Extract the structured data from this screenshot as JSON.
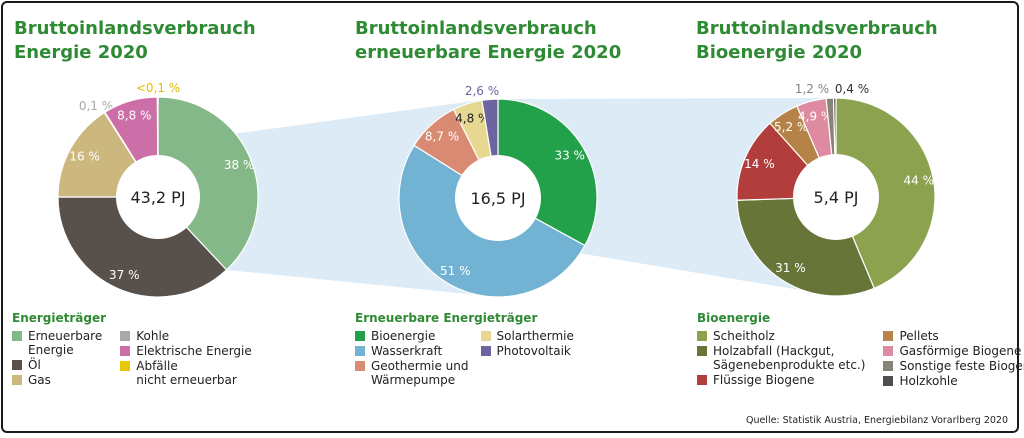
{
  "source": "Quelle: Statistik Austria, Energiebilanz Vorarlberg 2020",
  "chart_data": [
    {
      "type": "pie",
      "title": [
        "Bruttoinlandsverbrauch",
        "Energie 2020"
      ],
      "center_label": "43,2 PJ",
      "legend_title": "Energieträger",
      "slices": [
        {
          "name": [
            "Erneuerbare",
            "Energie"
          ],
          "value": 38,
          "label": "38 %",
          "color": "#85b888"
        },
        {
          "name": [
            "Öl"
          ],
          "value": 37,
          "label": "37 %",
          "color": "#57504b"
        },
        {
          "name": [
            "Gas"
          ],
          "value": 16,
          "label": "16 %",
          "color": "#ccb87e"
        },
        {
          "name": [
            "Kohle"
          ],
          "value": 0.1,
          "label": "0,1 %",
          "color": "#a8a8a8"
        },
        {
          "name": [
            "Elektrische Energie"
          ],
          "value": 8.8,
          "label": "8,8 %",
          "color": "#cc6fa8"
        },
        {
          "name": [
            "Abfälle",
            "nicht erneuerbar"
          ],
          "value": 0.1,
          "label": "<0,1 %",
          "color": "#e8c800"
        }
      ],
      "draw_order": [
        0,
        1,
        2,
        3,
        4,
        5
      ],
      "legend_columns": [
        [
          0,
          1,
          2
        ],
        [
          3,
          4,
          5
        ]
      ]
    },
    {
      "type": "pie",
      "title": [
        "Bruttoinlandsverbrauch",
        "erneuerbare Energie 2020"
      ],
      "center_label": "16,5 PJ",
      "legend_title": "Erneuerbare Energieträger",
      "slices": [
        {
          "name": [
            "Bioenergie"
          ],
          "value": 33,
          "label": "33 %",
          "color": "#22a04a"
        },
        {
          "name": [
            "Wasserkraft"
          ],
          "value": 51,
          "label": "51 %",
          "color": "#72b3d3"
        },
        {
          "name": [
            "Geothermie und",
            "Wärmepumpe"
          ],
          "value": 8.7,
          "label": "8,7 %",
          "color": "#d88a72"
        },
        {
          "name": [
            "Solarthermie"
          ],
          "value": 4.8,
          "label": "4,8 %",
          "color": "#e6d890"
        },
        {
          "name": [
            "Photovoltaik"
          ],
          "value": 2.6,
          "label": "2,6 %",
          "color": "#6e64a0"
        }
      ],
      "draw_order": [
        0,
        1,
        2,
        3,
        4
      ],
      "legend_columns": [
        [
          0,
          1,
          2
        ],
        [
          3,
          4
        ]
      ]
    },
    {
      "type": "pie",
      "title": [
        "Bruttoinlandsverbrauch",
        "Bioenergie 2020"
      ],
      "center_label": "5,4 PJ",
      "legend_title": "Bioenergie",
      "slices": [
        {
          "name": [
            "Scheitholz"
          ],
          "value": 44,
          "label": "44 %",
          "color": "#8ca24e"
        },
        {
          "name": [
            "Holzabfall (Hackgut,",
            "Sägenebenprodukte etc.)"
          ],
          "value": 31,
          "label": "31 %",
          "color": "#687538"
        },
        {
          "name": [
            "Flüssige Biogene"
          ],
          "value": 14,
          "label": "14 %",
          "color": "#b23d3d"
        },
        {
          "name": [
            "Pellets"
          ],
          "value": 5.2,
          "label": "5,2 %",
          "color": "#b58347"
        },
        {
          "name": [
            "Gasförmige Biogene"
          ],
          "value": 4.9,
          "label": "4,9 %",
          "color": "#de8aa0"
        },
        {
          "name": [
            "Sonstige feste Biogene"
          ],
          "value": 1.2,
          "label": "1,2 %",
          "color": "#8a8478"
        },
        {
          "name": [
            "Holzkohle"
          ],
          "value": 0.4,
          "label": "0,4 %",
          "color": "#4e4e4e"
        }
      ],
      "draw_order": [
        0,
        1,
        2,
        3,
        4,
        5,
        6
      ],
      "legend_columns": [
        [
          0,
          1,
          2
        ],
        [
          3,
          4,
          5,
          6
        ]
      ]
    }
  ]
}
